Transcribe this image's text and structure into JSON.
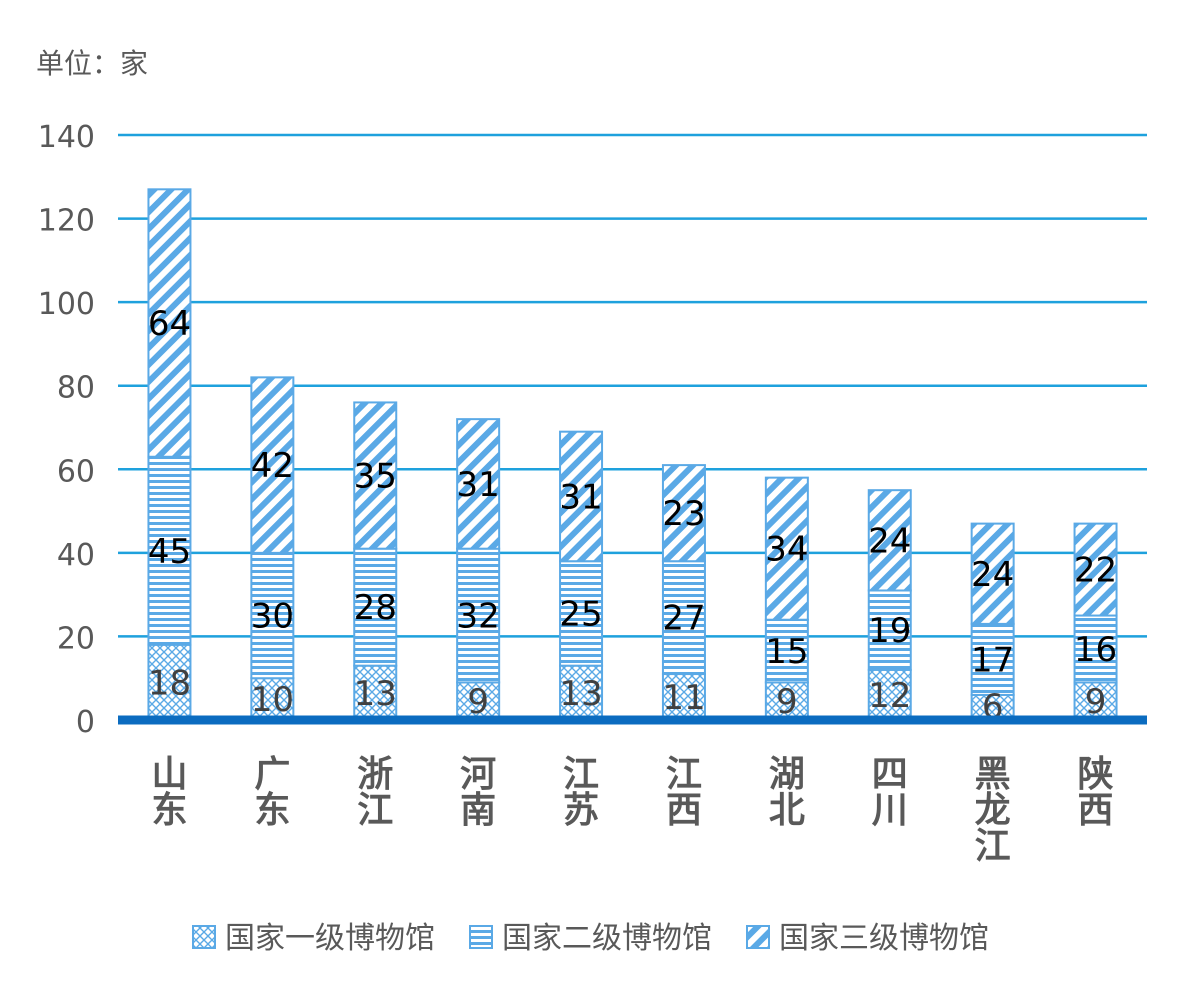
{
  "chart_data": {
    "type": "bar",
    "stacked": true,
    "unit_label": "单位：家",
    "categories": [
      "山东",
      "广东",
      "浙江",
      "河南",
      "江苏",
      "江西",
      "湖北",
      "四川",
      "黑龙江",
      "陕西"
    ],
    "series": [
      {
        "name": "国家一级博物馆",
        "values": [
          18,
          10,
          13,
          9,
          13,
          11,
          9,
          12,
          6,
          9
        ],
        "pattern": "crosshatch"
      },
      {
        "name": "国家二级博物馆",
        "values": [
          45,
          30,
          28,
          32,
          25,
          27,
          15,
          19,
          17,
          16
        ],
        "pattern": "horizontal"
      },
      {
        "name": "国家三级博物馆",
        "values": [
          64,
          42,
          35,
          31,
          31,
          23,
          34,
          24,
          24,
          22
        ],
        "pattern": "diagonal"
      }
    ],
    "ylim": [
      0,
      140
    ],
    "yticks": [
      0,
      20,
      40,
      60,
      80,
      100,
      120,
      140
    ],
    "grid": true,
    "legend_position": "bottom",
    "colors": {
      "bar_main": "#5aa9e6",
      "bar_light": "#ffffff",
      "grid": "#1ea1dd",
      "baseline": "#0b6cc0",
      "axis_text": "#595959",
      "label_text": "#000000"
    }
  }
}
